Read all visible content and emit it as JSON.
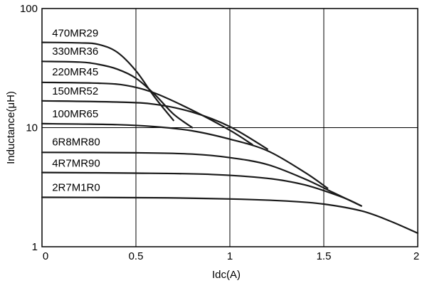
{
  "chart_data": {
    "type": "line",
    "xlabel": "Idc(A)",
    "ylabel": "Inductance(μH)",
    "xlim": [
      0,
      2
    ],
    "ylim": [
      1,
      100
    ],
    "yscale": "log",
    "grid": true,
    "x_ticks": [
      "0",
      "0.5",
      "1",
      "1.5",
      "2"
    ],
    "y_ticks": [
      "1",
      "10",
      "100"
    ],
    "series": [
      {
        "name": "470MR29",
        "label_at": [
          0.05,
          58
        ],
        "points": [
          [
            0,
            52
          ],
          [
            0.2,
            51.5
          ],
          [
            0.3,
            50
          ],
          [
            0.4,
            43
          ],
          [
            0.5,
            30
          ],
          [
            0.6,
            18
          ],
          [
            0.7,
            11.5
          ]
        ]
      },
      {
        "name": "330MR36",
        "label_at": [
          0.05,
          41
        ],
        "points": [
          [
            0,
            36
          ],
          [
            0.2,
            35.5
          ],
          [
            0.3,
            34
          ],
          [
            0.4,
            31
          ],
          [
            0.5,
            26
          ],
          [
            0.6,
            19
          ],
          [
            0.7,
            13
          ],
          [
            0.8,
            10
          ]
        ]
      },
      {
        "name": "220MR45",
        "label_at": [
          0.05,
          27.5
        ],
        "points": [
          [
            0,
            24
          ],
          [
            0.3,
            23.6
          ],
          [
            0.45,
            22.6
          ],
          [
            0.6,
            19.5
          ],
          [
            0.8,
            14
          ],
          [
            1.0,
            9.5
          ],
          [
            1.12,
            7.2
          ]
        ]
      },
      {
        "name": "150MR52",
        "label_at": [
          0.05,
          19
        ],
        "points": [
          [
            0,
            16.8
          ],
          [
            0.4,
            16.4
          ],
          [
            0.6,
            15.7
          ],
          [
            0.8,
            13.5
          ],
          [
            1.0,
            10.2
          ],
          [
            1.2,
            6.6
          ]
        ]
      },
      {
        "name": "100MR65",
        "label_at": [
          0.05,
          12.2
        ],
        "points": [
          [
            0,
            10.8
          ],
          [
            0.4,
            10.6
          ],
          [
            0.6,
            10.2
          ],
          [
            0.8,
            9.4
          ],
          [
            1.0,
            8
          ],
          [
            1.2,
            6.4
          ],
          [
            1.4,
            4.2
          ],
          [
            1.52,
            3.1
          ]
        ]
      },
      {
        "name": "6R8MR80",
        "label_at": [
          0.05,
          7.1
        ],
        "points": [
          [
            0,
            6.2
          ],
          [
            0.5,
            6.15
          ],
          [
            0.8,
            6
          ],
          [
            1.0,
            5.6
          ],
          [
            1.2,
            4.9
          ],
          [
            1.4,
            3.7
          ],
          [
            1.55,
            2.85
          ],
          [
            1.7,
            2.2
          ]
        ]
      },
      {
        "name": "4R7MR90",
        "label_at": [
          0.05,
          4.7
        ],
        "points": [
          [
            0,
            4.2
          ],
          [
            0.5,
            4.15
          ],
          [
            0.9,
            4.05
          ],
          [
            1.2,
            3.75
          ],
          [
            1.4,
            3.3
          ],
          [
            1.6,
            2.6
          ],
          [
            1.7,
            2.2
          ]
        ]
      },
      {
        "name": "2R7M1R0",
        "label_at": [
          0.05,
          2.95
        ],
        "points": [
          [
            0,
            2.6
          ],
          [
            0.6,
            2.58
          ],
          [
            1.0,
            2.52
          ],
          [
            1.3,
            2.42
          ],
          [
            1.5,
            2.28
          ],
          [
            1.7,
            2.0
          ],
          [
            1.85,
            1.65
          ],
          [
            2.0,
            1.3
          ]
        ]
      }
    ]
  }
}
